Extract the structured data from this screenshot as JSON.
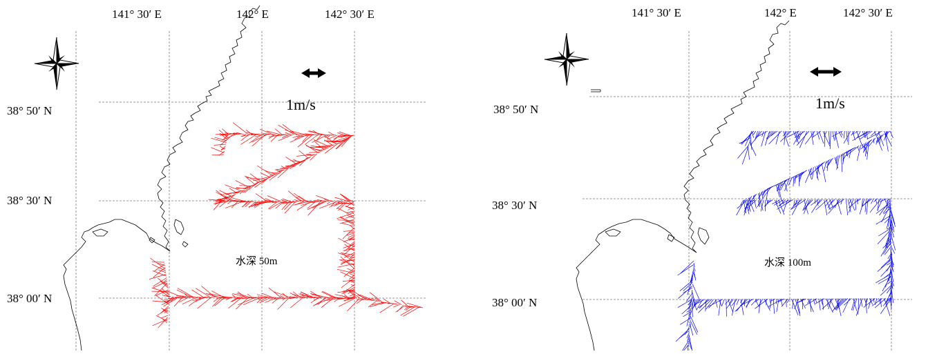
{
  "panels": [
    {
      "id": "left",
      "lon_labels": [
        "141° 30′ E",
        "142° E",
        "142° 30′ E"
      ],
      "lat_labels": [
        "38° 50′ N",
        "38° 30′ N",
        "38° 00′ N"
      ],
      "scale_label": "1m/s",
      "depth_label": "水深 50m",
      "vector_color": "#ff0000"
    },
    {
      "id": "right",
      "lon_labels": [
        "141° 30′ E",
        "142° E",
        "142° 30′ E"
      ],
      "lat_labels": [
        "38° 50′ N",
        "38° 30′ N",
        "38° 00′ N"
      ],
      "scale_label": "1m/s",
      "depth_label": "水深 100m",
      "vector_color": "#0000ff"
    }
  ]
}
